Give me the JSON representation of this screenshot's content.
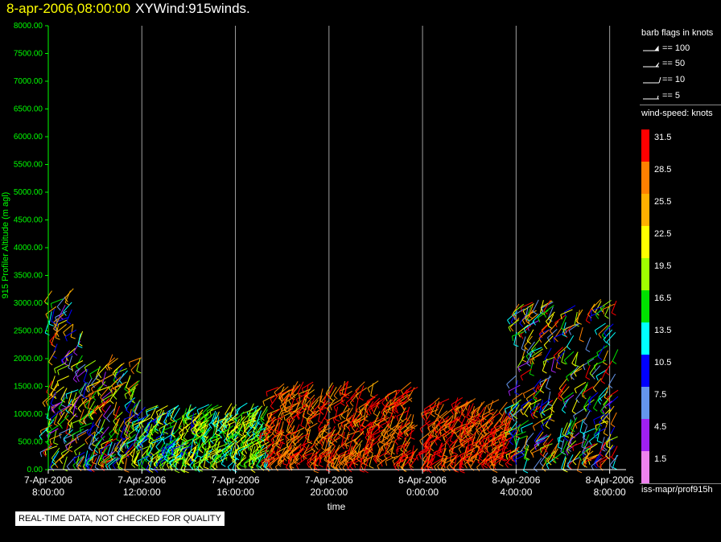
{
  "title": {
    "datetime": "8-apr-2006,08:00:00",
    "name": "XYWind:915winds."
  },
  "notice": "REAL-TIME DATA, NOT CHECKED FOR QUALITY",
  "source": "iss-mapr/prof915h",
  "colors": {
    "axis": "#00ff00",
    "grid": "#a0a0a0",
    "title_date": "#ffff00"
  },
  "barb_legend": {
    "title": "barb flags in knots",
    "items": [
      "== 100",
      "== 50",
      "== 10",
      "== 5"
    ]
  },
  "speed_legend": {
    "title": "wind-speed: knots",
    "items": [
      {
        "label": "31.5",
        "color": "#ff0000"
      },
      {
        "label": "28.5",
        "color": "#ff8000"
      },
      {
        "label": "25.5",
        "color": "#ffb000"
      },
      {
        "label": "22.5",
        "color": "#ffff00"
      },
      {
        "label": "19.5",
        "color": "#a0ff00"
      },
      {
        "label": "16.5",
        "color": "#00e000"
      },
      {
        "label": "13.5",
        "color": "#00ffff"
      },
      {
        "label": "10.5",
        "color": "#0000ff"
      },
      {
        "label": "7.5",
        "color": "#6495ed"
      },
      {
        "label": "4.5",
        "color": "#a020f0"
      },
      {
        "label": "1.5",
        "color": "#ee82ee"
      }
    ]
  },
  "chart_data": {
    "type": "scatter",
    "title": "",
    "xlabel": "time",
    "ylabel": "915 Profiler Altitude (m agl)",
    "ylim": [
      0,
      8000
    ],
    "yticks": [
      "0.00",
      "500.00",
      "1000.00",
      "1500.00",
      "2000.00",
      "2500.00",
      "3000.00",
      "3500.00",
      "4000.00",
      "4500.00",
      "5000.00",
      "5500.00",
      "6000.00",
      "6500.00",
      "7000.00",
      "7500.00",
      "8000.00"
    ],
    "xlim_hours": [
      0,
      24.7
    ],
    "xticks": [
      {
        "date": "7-Apr-2006",
        "time": "8:00:00"
      },
      {
        "date": "7-Apr-2006",
        "time": "12:00:00"
      },
      {
        "date": "7-Apr-2006",
        "time": "16:00:00"
      },
      {
        "date": "7-Apr-2006",
        "time": "20:00:00"
      },
      {
        "date": "8-Apr-2006",
        "time": "0:00:00"
      },
      {
        "date": "8-Apr-2006",
        "time": "4:00:00"
      },
      {
        "date": "8-Apr-2006",
        "time": "8:00:00"
      }
    ],
    "grid": true,
    "legend": "right",
    "description_segments": [
      {
        "t": [
          0.0,
          1.5
        ],
        "alt": [
          200,
          3300
        ],
        "speed": [
          3,
          32
        ]
      },
      {
        "t": [
          1.5,
          4.0
        ],
        "alt": [
          200,
          2100
        ],
        "speed": [
          5,
          32
        ]
      },
      {
        "t": [
          4.0,
          6.5
        ],
        "alt": [
          200,
          1200
        ],
        "speed": [
          10,
          24
        ]
      },
      {
        "t": [
          6.5,
          9.5
        ],
        "alt": [
          200,
          1200
        ],
        "speed": [
          12,
          24
        ]
      },
      {
        "t": [
          9.5,
          15.8
        ],
        "alt": [
          200,
          1600
        ],
        "speed": [
          26,
          33
        ]
      },
      {
        "t": [
          16.2,
          20.0
        ],
        "alt": [
          200,
          1300
        ],
        "speed": [
          27,
          33
        ]
      },
      {
        "t": [
          20.0,
          24.4
        ],
        "alt": [
          200,
          3100
        ],
        "speed": [
          5,
          33
        ]
      }
    ]
  }
}
